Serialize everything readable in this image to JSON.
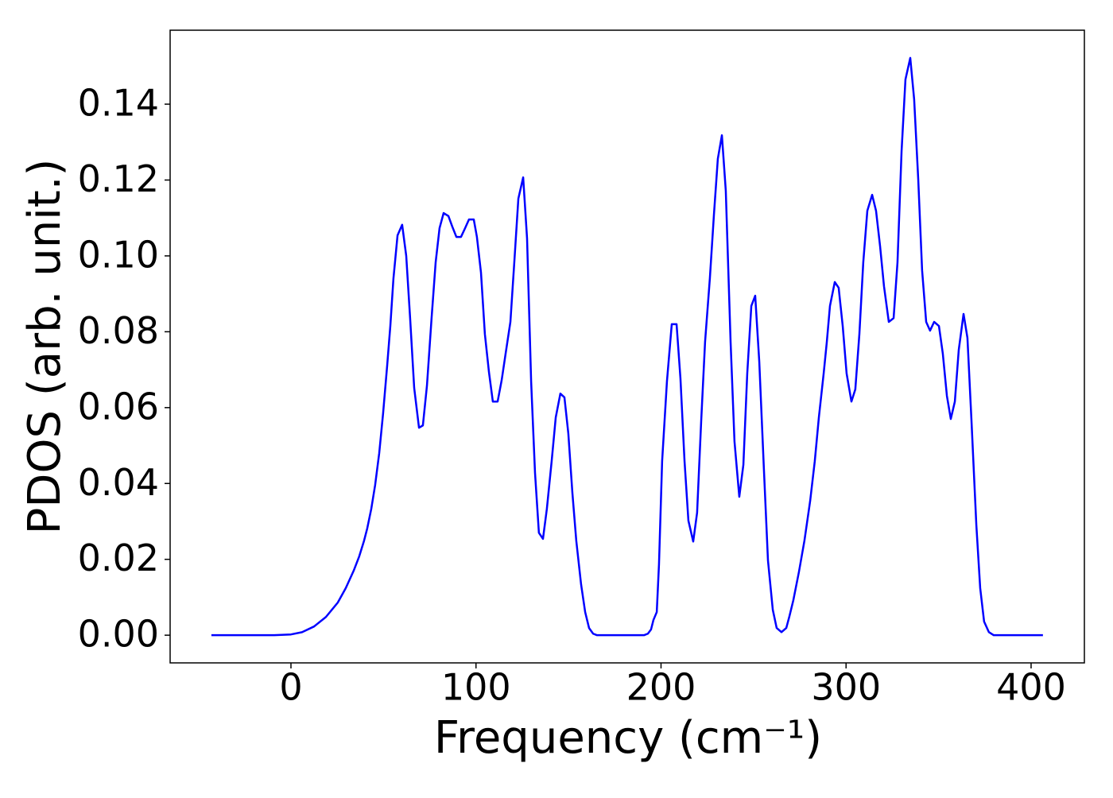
{
  "chart_data": {
    "type": "line",
    "xlabel": "Frequency (cm⁻¹)",
    "ylabel": "PDOS (arb. unit.)",
    "color": "#0000ff",
    "xlim": [
      -65.3,
      428.8
    ],
    "ylim": [
      -0.0073,
      0.1595
    ],
    "xticks": [
      0,
      100,
      200,
      300,
      400
    ],
    "yticks": [
      {
        "value": 0,
        "label": "0.00"
      },
      {
        "value": 0.02,
        "label": "0.02"
      },
      {
        "value": 0.04,
        "label": "0.04"
      },
      {
        "value": 0.06,
        "label": "0.06"
      },
      {
        "value": 0.08,
        "label": "0.08"
      },
      {
        "value": 0.1,
        "label": "0.10"
      },
      {
        "value": 0.12,
        "label": "0.12"
      },
      {
        "value": 0.14,
        "label": "0.14"
      }
    ],
    "grid": false,
    "x": [
      -43.0,
      -9.0,
      0,
      6.0,
      12.5,
      18.9,
      25.3,
      29.6,
      33.9,
      36.9,
      39.5,
      41.2,
      43.4,
      45.5,
      47.7,
      49.8,
      52.0,
      53.7,
      55.4,
      57.6,
      60.1,
      62.3,
      64.4,
      66.6,
      69.2,
      71.3,
      73.5,
      76.0,
      78.2,
      80.3,
      82.5,
      85.1,
      87.2,
      89.4,
      91.9,
      94.1,
      96.2,
      98.8,
      100.5,
      102.7,
      104.8,
      107.0,
      109.1,
      111.7,
      113.9,
      116.0,
      118.6,
      120.7,
      122.9,
      125.5,
      127.6,
      129.8,
      131.9,
      134.0,
      136.2,
      138.3,
      140.9,
      143.1,
      145.6,
      147.8,
      149.9,
      152.1,
      154.2,
      156.8,
      159.0,
      161.1,
      163.3,
      165.4,
      190.8,
      192.9,
      194.6,
      195.9,
      197.7,
      198.9,
      200.6,
      203.2,
      205.8,
      208.4,
      210.5,
      212.7,
      214.8,
      217.4,
      219.5,
      221.7,
      223.8,
      226.4,
      228.6,
      230.7,
      232.9,
      235.0,
      237.6,
      239.7,
      242.3,
      244.5,
      246.6,
      248.8,
      250.9,
      253.1,
      255.6,
      257.8,
      260.4,
      262.5,
      265.1,
      267.7,
      269.4,
      271.5,
      274.5,
      277.5,
      280.6,
      283.1,
      285.3,
      287.9,
      289.6,
      291.3,
      293.9,
      296.0,
      298.2,
      300.3,
      302.9,
      305.0,
      307.2,
      309.3,
      311.5,
      314.1,
      316.2,
      318.4,
      320.5,
      323.1,
      325.7,
      327.8,
      330.0,
      332.1,
      334.7,
      336.8,
      339.0,
      341.1,
      343.3,
      345.4,
      347.6,
      350.2,
      352.3,
      354.5,
      356.6,
      358.8,
      360.9,
      363.5,
      365.6,
      367.8,
      370.4,
      372.5,
      374.6,
      377.2,
      379.8,
      406.4
    ],
    "values": [
      0,
      0,
      0.0002,
      0.0008,
      0.0023,
      0.0048,
      0.0086,
      0.0124,
      0.017,
      0.0208,
      0.0249,
      0.0281,
      0.0333,
      0.0396,
      0.048,
      0.0585,
      0.0711,
      0.0815,
      0.0941,
      0.1054,
      0.1082,
      0.1,
      0.0836,
      0.0652,
      0.0547,
      0.0553,
      0.0658,
      0.0836,
      0.0983,
      0.1073,
      0.1113,
      0.1105,
      0.1077,
      0.105,
      0.105,
      0.1073,
      0.1096,
      0.1096,
      0.105,
      0.0956,
      0.0794,
      0.0694,
      0.0616,
      0.0616,
      0.0673,
      0.0742,
      0.0826,
      0.0983,
      0.1151,
      0.1207,
      0.1046,
      0.0669,
      0.0428,
      0.027,
      0.0254,
      0.0333,
      0.0459,
      0.0574,
      0.0637,
      0.0627,
      0.0532,
      0.0375,
      0.0249,
      0.0134,
      0.0061,
      0.0019,
      0.0004,
      0,
      0,
      0.0004,
      0.0015,
      0.004,
      0.0061,
      0.0187,
      0.0459,
      0.0669,
      0.082,
      0.082,
      0.0677,
      0.0459,
      0.0302,
      0.0247,
      0.0323,
      0.0564,
      0.0773,
      0.0941,
      0.1109,
      0.1256,
      0.1318,
      0.1172,
      0.0773,
      0.0511,
      0.0365,
      0.0449,
      0.069,
      0.0868,
      0.0895,
      0.0721,
      0.0438,
      0.0197,
      0.0067,
      0.0019,
      0.0008,
      0.0019,
      0.005,
      0.0092,
      0.0166,
      0.0249,
      0.0354,
      0.0459,
      0.0574,
      0.069,
      0.0773,
      0.0868,
      0.0931,
      0.0916,
      0.0815,
      0.069,
      0.0616,
      0.0648,
      0.0794,
      0.0983,
      0.1119,
      0.1161,
      0.1119,
      0.1025,
      0.092,
      0.0826,
      0.0836,
      0.0983,
      0.1276,
      0.1465,
      0.1522,
      0.1413,
      0.1203,
      0.0962,
      0.0826,
      0.0803,
      0.0826,
      0.0815,
      0.0742,
      0.0631,
      0.057,
      0.0616,
      0.0752,
      0.0847,
      0.0784,
      0.0564,
      0.0291,
      0.0124,
      0.0036,
      0.0008,
      0,
      0
    ]
  }
}
